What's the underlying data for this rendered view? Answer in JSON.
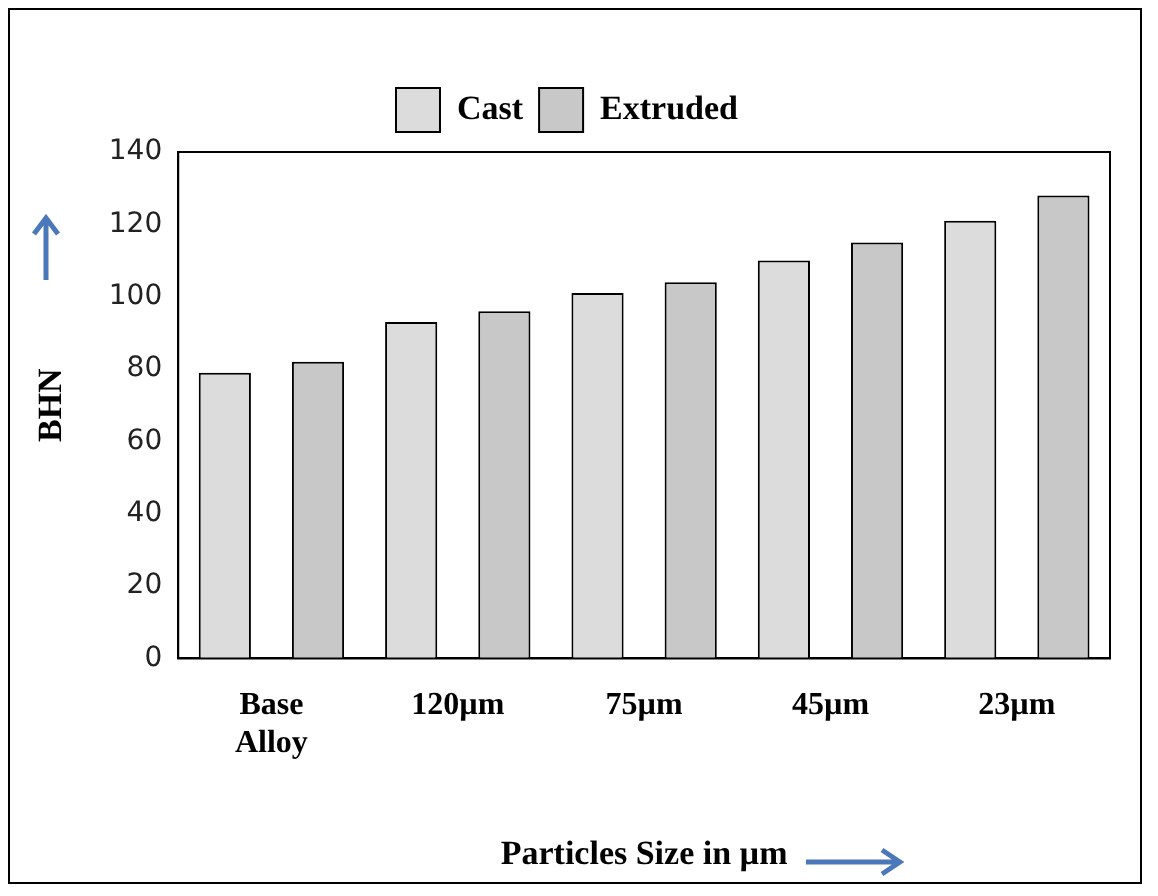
{
  "chart_data": {
    "type": "bar",
    "xlabel": "Particles Size in µm",
    "ylabel": "BHN",
    "categories": [
      "Base Alloy",
      "120µm",
      "75µm",
      "45µm",
      "23µm"
    ],
    "series": [
      {
        "name": "Cast",
        "color": "#dcdcdc",
        "values": [
          79,
          93,
          101,
          110,
          121
        ]
      },
      {
        "name": "Extruded",
        "color": "#c8c8c8",
        "values": [
          82,
          96,
          104,
          115,
          128
        ]
      }
    ],
    "ylim": [
      0,
      140
    ],
    "yticks": [
      0,
      20,
      40,
      60,
      80,
      100,
      120,
      140
    ],
    "grid": false,
    "legend": "top"
  }
}
